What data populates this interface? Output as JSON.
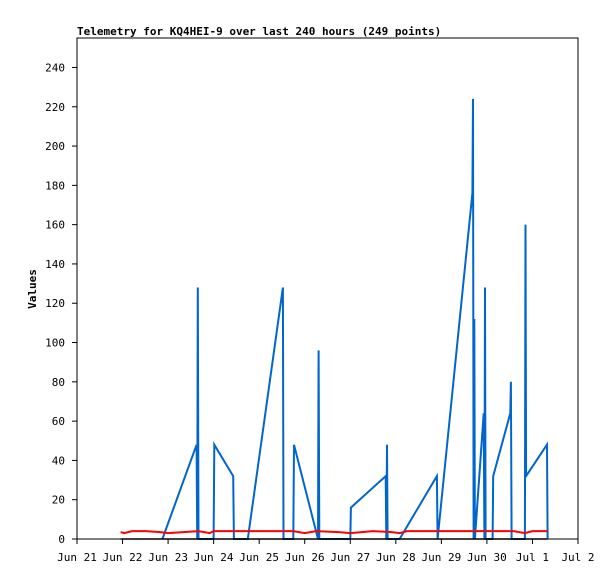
{
  "chart_data": {
    "type": "line",
    "title": "Telemetry for KQ4HEI-9 over last 240 hours (249 points)",
    "xlabel": "",
    "ylabel": "Values",
    "x_type": "date",
    "xlim": [
      "2021-06-21",
      "2021-07-02"
    ],
    "ylim": [
      0,
      255
    ],
    "y_ticks": [
      0,
      20,
      40,
      60,
      80,
      100,
      120,
      140,
      160,
      180,
      200,
      220,
      240
    ],
    "x_ticks": [
      {
        "date": "2021-06-21",
        "label": "Jun 21"
      },
      {
        "date": "2021-06-22",
        "label": "Jun 22"
      },
      {
        "date": "2021-06-23",
        "label": "Jun 23"
      },
      {
        "date": "2021-06-24",
        "label": "Jun 24"
      },
      {
        "date": "2021-06-25",
        "label": "Jun 25"
      },
      {
        "date": "2021-06-26",
        "label": "Jun 26"
      },
      {
        "date": "2021-06-27",
        "label": "Jun 27"
      },
      {
        "date": "2021-06-28",
        "label": "Jun 28"
      },
      {
        "date": "2021-06-29",
        "label": "Jun 29"
      },
      {
        "date": "2021-06-30",
        "label": "Jun 30"
      },
      {
        "date": "2021-07-01",
        "label": "Jul 1"
      },
      {
        "date": "2021-07-02",
        "label": "Jul 2"
      }
    ],
    "grid": false,
    "legend": "none",
    "series": [
      {
        "color": "#0066cc",
        "points": [
          [
            "2021-06-22 21:00",
            0
          ],
          [
            "2021-06-23 15:00",
            48
          ],
          [
            "2021-06-23 15:20",
            0
          ],
          [
            "2021-06-23 15:40",
            128
          ],
          [
            "2021-06-23 16:00",
            0
          ],
          [
            "2021-06-24 00:00",
            0
          ],
          [
            "2021-06-24 00:20",
            48
          ],
          [
            "2021-06-24 10:20",
            32
          ],
          [
            "2021-06-24 10:40",
            0
          ],
          [
            "2021-06-24 18:00",
            0
          ],
          [
            "2021-06-25 12:30",
            128
          ],
          [
            "2021-06-25 12:50",
            0
          ],
          [
            "2021-06-25 18:00",
            0
          ],
          [
            "2021-06-25 18:20",
            48
          ],
          [
            "2021-06-26 07:00",
            0
          ],
          [
            "2021-06-26 07:20",
            96
          ],
          [
            "2021-06-26 07:40",
            0
          ],
          [
            "2021-06-27 00:00",
            0
          ],
          [
            "2021-06-27 00:20",
            16
          ],
          [
            "2021-06-27 18:40",
            32
          ],
          [
            "2021-06-27 19:00",
            0
          ],
          [
            "2021-06-27 19:20",
            48
          ],
          [
            "2021-06-27 19:40",
            0
          ],
          [
            "2021-06-28 02:00",
            0
          ],
          [
            "2021-06-28 21:40",
            32
          ],
          [
            "2021-06-28 22:00",
            0
          ],
          [
            "2021-06-29 16:20",
            176
          ],
          [
            "2021-06-29 16:40",
            224
          ],
          [
            "2021-06-29 17:00",
            0
          ],
          [
            "2021-06-29 17:20",
            112
          ],
          [
            "2021-06-29 17:40",
            0
          ],
          [
            "2021-06-29 22:20",
            64
          ],
          [
            "2021-06-29 22:40",
            0
          ],
          [
            "2021-06-29 23:00",
            128
          ],
          [
            "2021-06-29 23:20",
            0
          ],
          [
            "2021-06-30 03:00",
            0
          ],
          [
            "2021-06-30 03:20",
            32
          ],
          [
            "2021-06-30 12:20",
            64
          ],
          [
            "2021-06-30 12:40",
            80
          ],
          [
            "2021-06-30 13:00",
            0
          ],
          [
            "2021-06-30 20:00",
            0
          ],
          [
            "2021-06-30 20:20",
            160
          ],
          [
            "2021-06-30 20:40",
            32
          ],
          [
            "2021-07-01 07:40",
            48
          ],
          [
            "2021-07-01 08:00",
            0
          ]
        ]
      },
      {
        "color": "#ff0000",
        "points": [
          [
            "2021-06-21 23:00",
            3.5
          ],
          [
            "2021-06-22 01:00",
            3
          ],
          [
            "2021-06-22 03:00",
            3.5
          ],
          [
            "2021-06-22 05:00",
            4
          ],
          [
            "2021-06-22 12:00",
            4
          ],
          [
            "2021-06-22 20:00",
            3.5
          ],
          [
            "2021-06-23 00:00",
            3
          ],
          [
            "2021-06-23 16:00",
            4
          ],
          [
            "2021-06-23 22:00",
            3
          ],
          [
            "2021-06-24 00:00",
            4
          ],
          [
            "2021-06-24 12:00",
            4
          ],
          [
            "2021-06-25 00:00",
            4
          ],
          [
            "2021-06-25 18:00",
            4
          ],
          [
            "2021-06-26 00:00",
            3
          ],
          [
            "2021-06-26 06:00",
            4
          ],
          [
            "2021-06-26 18:00",
            3.5
          ],
          [
            "2021-06-27 00:00",
            3
          ],
          [
            "2021-06-27 12:00",
            4
          ],
          [
            "2021-06-27 22:00",
            3.5
          ],
          [
            "2021-06-28 02:00",
            3
          ],
          [
            "2021-06-28 06:00",
            4
          ],
          [
            "2021-06-28 18:00",
            4
          ],
          [
            "2021-06-29 06:00",
            4
          ],
          [
            "2021-06-29 18:00",
            4
          ],
          [
            "2021-06-30 06:00",
            4
          ],
          [
            "2021-06-30 14:00",
            4
          ],
          [
            "2021-06-30 20:00",
            3
          ],
          [
            "2021-07-01 00:00",
            4
          ],
          [
            "2021-07-01 08:00",
            4
          ]
        ]
      },
      {
        "color": "#000000",
        "points": [
          [
            "2021-06-21 23:00",
            0
          ],
          [
            "2021-07-01 08:00",
            0
          ]
        ]
      }
    ]
  }
}
